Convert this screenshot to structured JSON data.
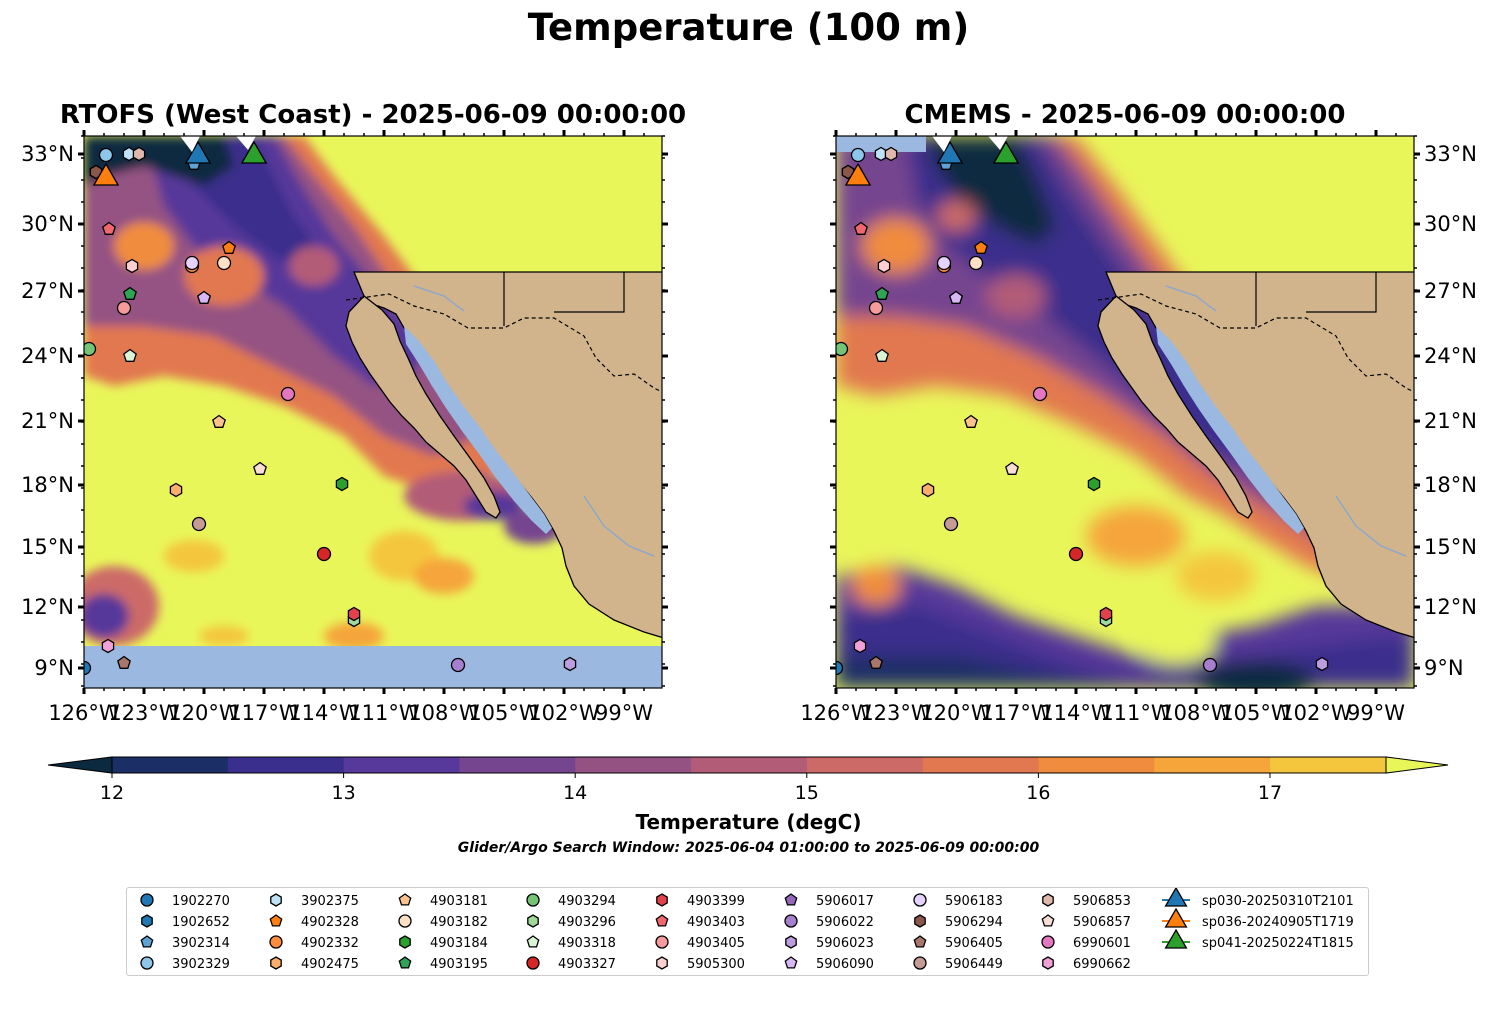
{
  "title": "Temperature (100 m)",
  "panels": [
    {
      "title": "RTOFS (West Coast) - 2025-06-09 00:00:00"
    },
    {
      "title": "CMEMS - 2025-06-09 00:00:00"
    }
  ],
  "axes": {
    "x_ticks": [
      "126°W",
      "123°W",
      "120°W",
      "117°W",
      "114°W",
      "111°W",
      "108°W",
      "105°W",
      "102°W",
      "99°W"
    ],
    "y_ticks": [
      "33°N",
      "30°N",
      "27°N",
      "24°N",
      "21°N",
      "18°N",
      "15°N",
      "12°N",
      "9°N"
    ]
  },
  "colorbar": {
    "label": "Temperature (degC)",
    "ticks": [
      "12",
      "13",
      "14",
      "15",
      "16",
      "17"
    ],
    "colors": [
      "#0b2a3f",
      "#1b2f66",
      "#3a2f8c",
      "#56399a",
      "#76458f",
      "#945283",
      "#b25c78",
      "#cc6a68",
      "#e2784f",
      "#f08c3d",
      "#f5a53a",
      "#f4c63e",
      "#e9f65a"
    ]
  },
  "search_window": "Glider/Argo Search Window: 2025-06-04 01:00:00 to 2025-06-09 00:00:00",
  "legend": [
    {
      "label": "1902270",
      "marker": "circle",
      "color": "#1f77b4"
    },
    {
      "label": "1902652",
      "marker": "hexagon",
      "color": "#1f77b4"
    },
    {
      "label": "3902314",
      "marker": "pentagon",
      "color": "#5fa2d6"
    },
    {
      "label": "3902329",
      "marker": "circle",
      "color": "#8ec6ea"
    },
    {
      "label": "3902375",
      "marker": "hexagon",
      "color": "#bfe2f7"
    },
    {
      "label": "4902328",
      "marker": "pentagon",
      "color": "#ff7f0e"
    },
    {
      "label": "4902332",
      "marker": "circle",
      "color": "#fd8d3c"
    },
    {
      "label": "4902475",
      "marker": "hexagon",
      "color": "#fdae6b"
    },
    {
      "label": "4903181",
      "marker": "pentagon",
      "color": "#fdc38d"
    },
    {
      "label": "4903182",
      "marker": "circle",
      "color": "#fde0c5"
    },
    {
      "label": "4903184",
      "marker": "hexagon",
      "color": "#2ca02c"
    },
    {
      "label": "4903195",
      "marker": "pentagon",
      "color": "#31a354"
    },
    {
      "label": "4903294",
      "marker": "circle",
      "color": "#74c476"
    },
    {
      "label": "4903296",
      "marker": "hexagon",
      "color": "#a1d99b"
    },
    {
      "label": "4903318",
      "marker": "pentagon",
      "color": "#d9f5d6"
    },
    {
      "label": "4903327",
      "marker": "circle",
      "color": "#d62728"
    },
    {
      "label": "4903399",
      "marker": "hexagon",
      "color": "#e3424a"
    },
    {
      "label": "4903403",
      "marker": "pentagon",
      "color": "#f0686e"
    },
    {
      "label": "4903405",
      "marker": "circle",
      "color": "#f79a9b"
    },
    {
      "label": "5905300",
      "marker": "hexagon",
      "color": "#fcd0d0"
    },
    {
      "label": "5906017",
      "marker": "pentagon",
      "color": "#9467bd"
    },
    {
      "label": "5906022",
      "marker": "circle",
      "color": "#a77fcf"
    },
    {
      "label": "5906023",
      "marker": "hexagon",
      "color": "#bc9ddf"
    },
    {
      "label": "5906090",
      "marker": "pentagon",
      "color": "#d7b8f5"
    },
    {
      "label": "5906183",
      "marker": "circle",
      "color": "#e6d3fb"
    },
    {
      "label": "5906294",
      "marker": "hexagon",
      "color": "#8c564b"
    },
    {
      "label": "5906405",
      "marker": "pentagon",
      "color": "#a8766a"
    },
    {
      "label": "5906449",
      "marker": "circle",
      "color": "#c49c94"
    },
    {
      "label": "5906853",
      "marker": "hexagon",
      "color": "#e0b7ab"
    },
    {
      "label": "5906857",
      "marker": "pentagon",
      "color": "#f8dfd6"
    },
    {
      "label": "6990601",
      "marker": "circle",
      "color": "#e377c2"
    },
    {
      "label": "6990662",
      "marker": "hexagon",
      "color": "#f2a0d8"
    },
    {
      "label": "sp030-20250310T2101",
      "marker": "triangle",
      "color": "#1f77b4"
    },
    {
      "label": "sp036-20240905T1719",
      "marker": "triangle",
      "color": "#ff7f0e"
    },
    {
      "label": "sp041-20250224T1815",
      "marker": "triangle",
      "color": "#2ca02c"
    }
  ]
}
